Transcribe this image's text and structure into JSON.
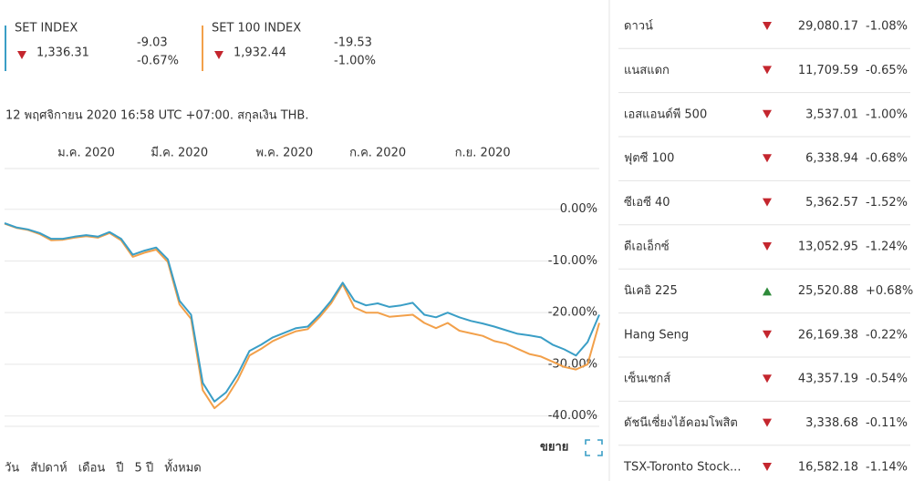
{
  "header": {
    "indices": [
      {
        "name": "SET INDEX",
        "value": "1,336.31",
        "change": "-9.03",
        "percent": "-0.67%",
        "color": "#3a9ec6"
      },
      {
        "name": "SET 100 INDEX",
        "value": "1,932.44",
        "change": "-19.53",
        "percent": "-1.00%",
        "color": "#f2a04a"
      }
    ],
    "timestamp": "12 พฤศจิกายน 2020 16:58 UTC +07:00. สกุลเงิน THB."
  },
  "chart_data": {
    "type": "line",
    "categories": [
      null,
      null,
      null,
      null,
      null,
      null,
      null,
      "ม.ค. 2020",
      null,
      null,
      null,
      null,
      null,
      null,
      null,
      "มี.ค. 2020",
      null,
      null,
      null,
      null,
      null,
      null,
      null,
      null,
      "พ.ค. 2020",
      null,
      null,
      null,
      null,
      null,
      null,
      null,
      "ก.ค. 2020",
      null,
      null,
      null,
      null,
      null,
      null,
      null,
      null,
      "ก.ย. 2020",
      null,
      null,
      null,
      null,
      null,
      null,
      null,
      null,
      null,
      null
    ],
    "series": [
      {
        "name": "SET INDEX",
        "color": "#3a9ec6",
        "values": [
          -2.7,
          -3.5,
          -3.9,
          -4.6,
          -5.7,
          -5.7,
          -5.3,
          -5.0,
          -5.3,
          -4.4,
          -5.7,
          -8.8,
          -8.0,
          -7.4,
          -9.7,
          -17.7,
          -20.4,
          -33.6,
          -37.2,
          -35.4,
          -31.9,
          -27.4,
          -26.2,
          -24.8,
          -23.9,
          -23.0,
          -22.7,
          -20.4,
          -17.7,
          -14.2,
          -17.7,
          -18.6,
          -18.2,
          -18.9,
          -18.6,
          -18.1,
          -20.4,
          -20.9,
          -20.0,
          -20.9,
          -21.6,
          -22.1,
          -22.7,
          -23.4,
          -24.1,
          -24.4,
          -24.8,
          -26.2,
          -27.1,
          -28.3,
          -25.7,
          -20.4
        ]
      },
      {
        "name": "SET 100 INDEX",
        "color": "#f2a04a",
        "values": [
          -2.8,
          -3.6,
          -4.0,
          -4.8,
          -6.0,
          -5.9,
          -5.5,
          -5.2,
          -5.5,
          -4.6,
          -6.0,
          -9.2,
          -8.4,
          -7.8,
          -10.2,
          -18.4,
          -21.2,
          -35.0,
          -38.5,
          -36.6,
          -33.0,
          -28.3,
          -27.0,
          -25.5,
          -24.5,
          -23.6,
          -23.2,
          -20.9,
          -18.2,
          -14.5,
          -19.0,
          -20.0,
          -20.0,
          -20.8,
          -20.6,
          -20.4,
          -22.0,
          -23.0,
          -22.0,
          -23.5,
          -24.0,
          -24.5,
          -25.5,
          -26.0,
          -27.0,
          -28.0,
          -28.5,
          -29.5,
          -30.5,
          -31.0,
          -30.0,
          -22.0
        ]
      }
    ],
    "ylim": [
      -42,
      7
    ],
    "yticks": [
      {
        "value": 0,
        "label": "0.00%"
      },
      {
        "value": -10,
        "label": "-10.00%"
      },
      {
        "value": -20,
        "label": "-20.00%"
      },
      {
        "value": -30,
        "label": "-30.00%"
      },
      {
        "value": -40,
        "label": "-40.00%"
      }
    ],
    "grid": true
  },
  "controls": {
    "ranges": [
      "วัน",
      "สัปดาห์",
      "เดือน",
      "ปี",
      "5 ปี",
      "ทั้งหมด"
    ],
    "expand": "ขยาย"
  },
  "markets": [
    {
      "name": "ดาวน์",
      "value": "29,080.17",
      "change": "-1.08%"
    },
    {
      "name": "แนสแดก",
      "value": "11,709.59",
      "change": "-0.65%"
    },
    {
      "name": "เอสแอนด์พี 500",
      "value": "3,537.01",
      "change": "-1.00%"
    },
    {
      "name": "ฟุตซี 100",
      "value": "6,338.94",
      "change": "-0.68%"
    },
    {
      "name": "ซีเอซี 40",
      "value": "5,362.57",
      "change": "-1.52%"
    },
    {
      "name": "ดีเอเอ็กซ์",
      "value": "13,052.95",
      "change": "-1.24%"
    },
    {
      "name": "นิเคอิ 225",
      "value": "25,520.88",
      "change": "+0.68%"
    },
    {
      "name": "Hang Seng",
      "value": "26,169.38",
      "change": "-0.22%"
    },
    {
      "name": "เซ็นเซกส์",
      "value": "43,357.19",
      "change": "-0.54%"
    },
    {
      "name": "ดัชนีเซี่ยงไฮ้คอมโพสิต",
      "value": "3,338.68",
      "change": "-0.11%"
    },
    {
      "name": "TSX-Toronto Stock...",
      "value": "16,582.18",
      "change": "-1.14%"
    }
  ]
}
